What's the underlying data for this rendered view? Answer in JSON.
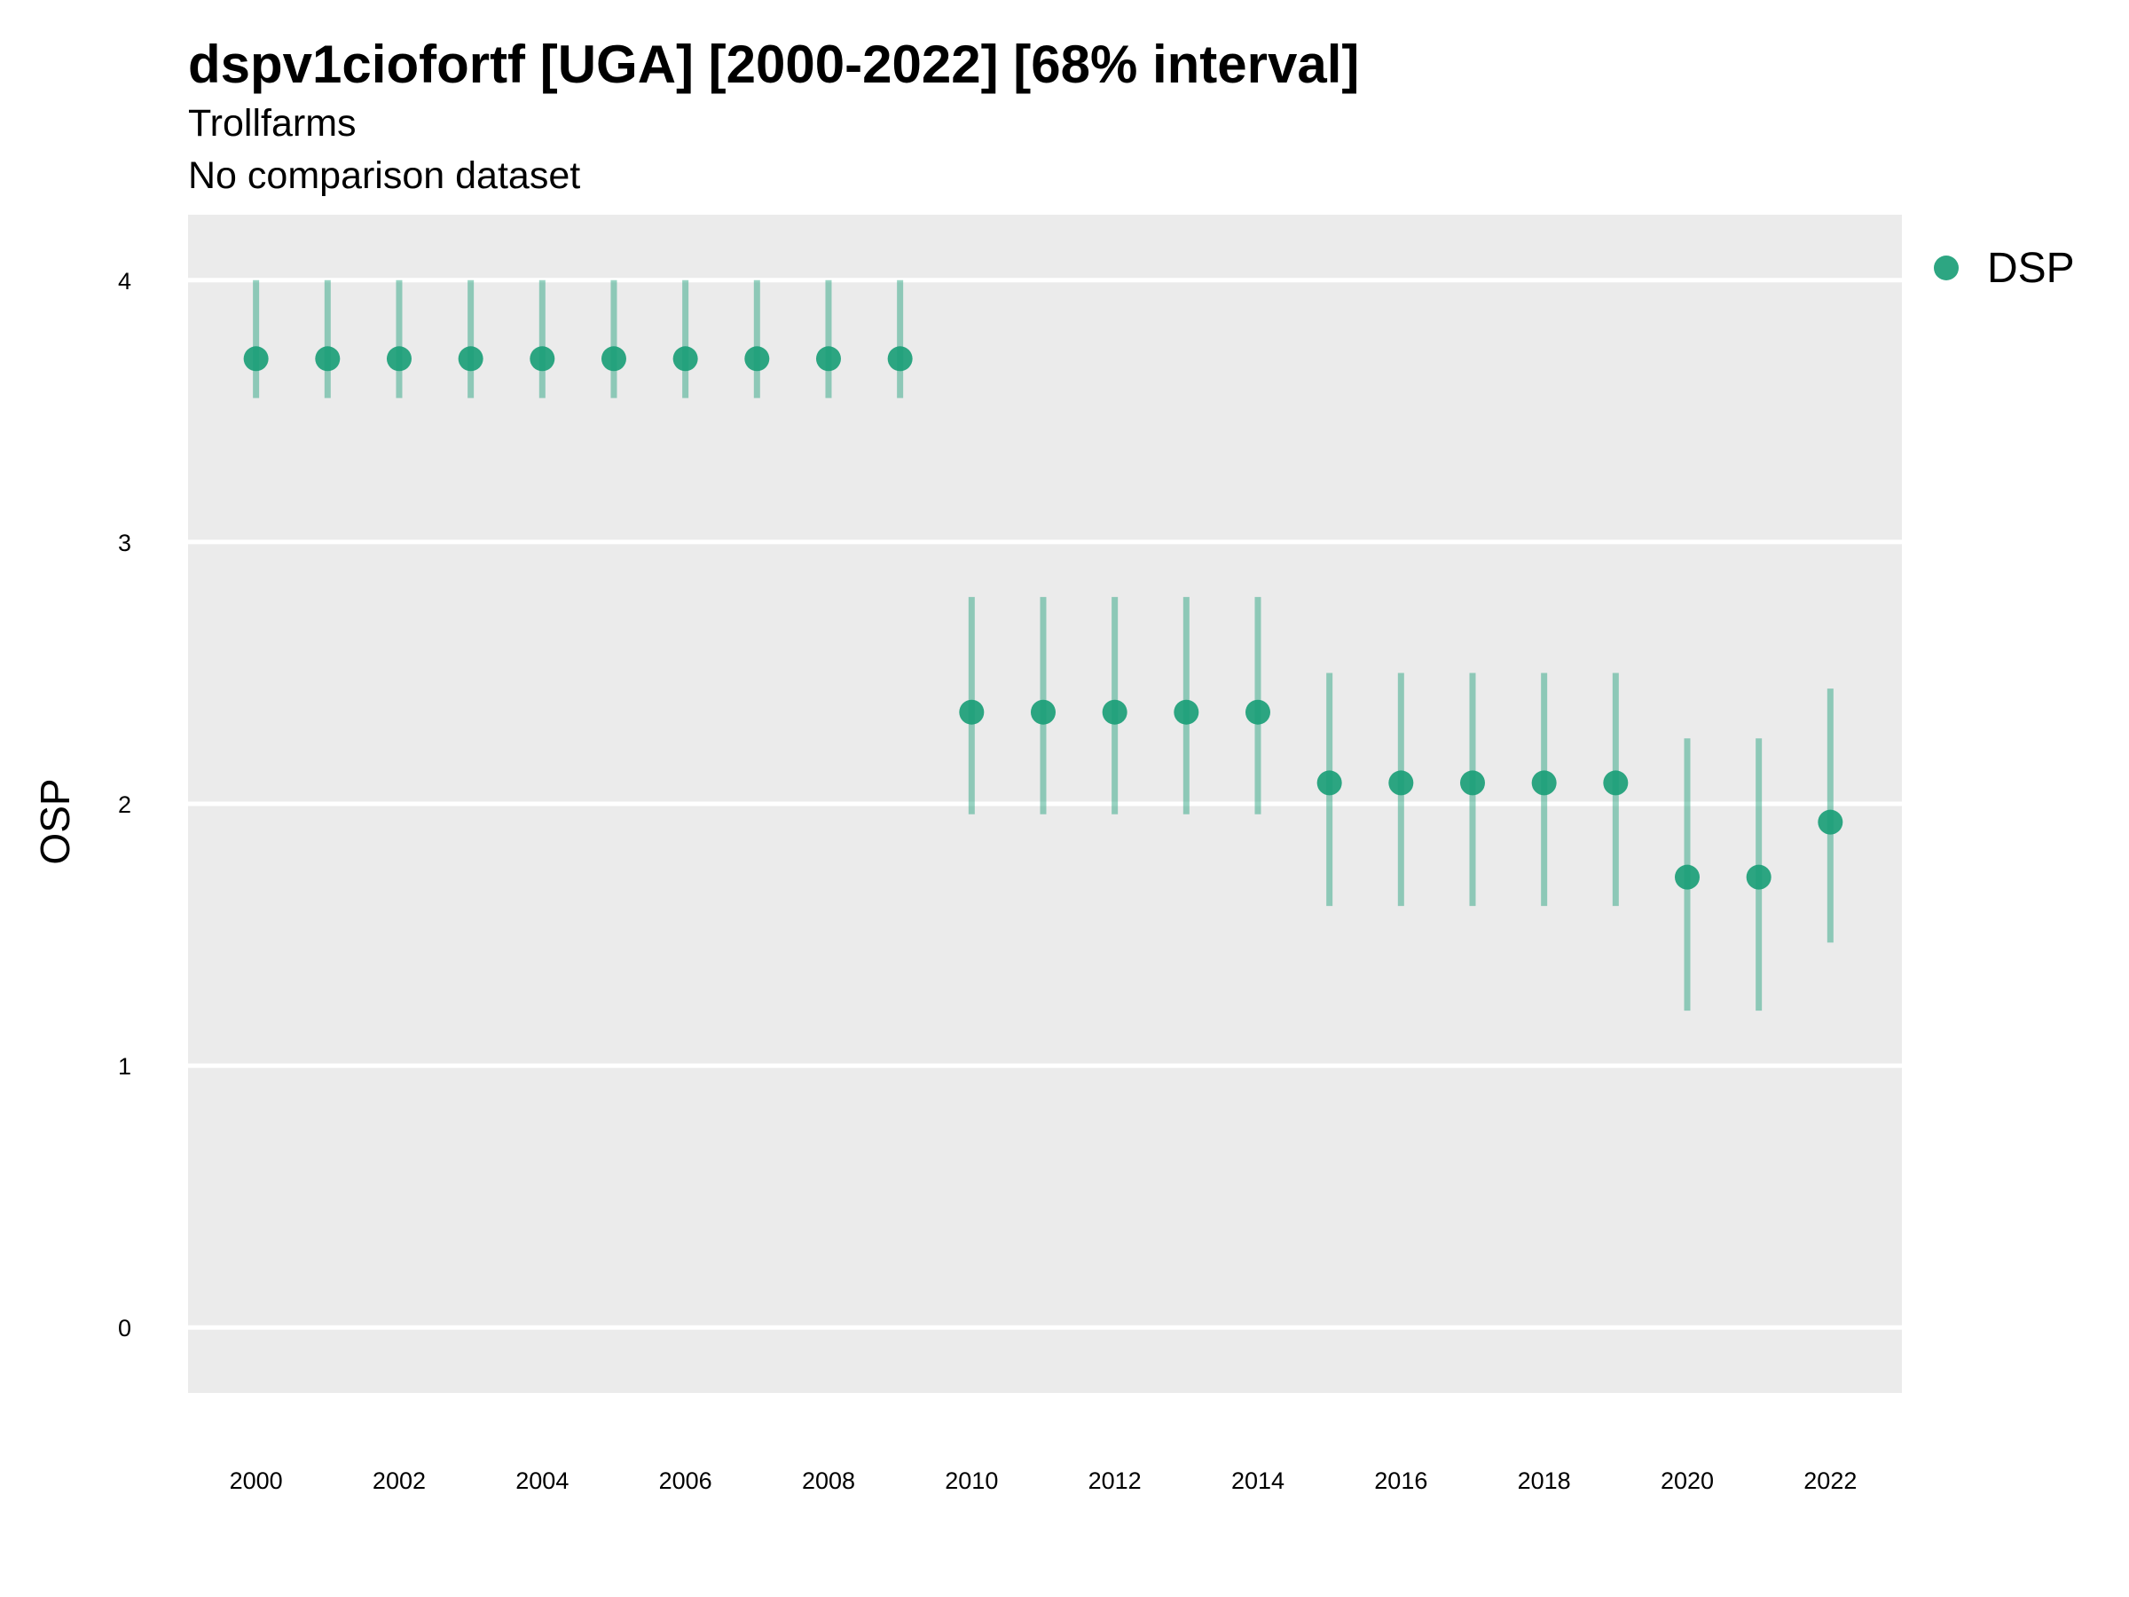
{
  "chart_data": {
    "type": "scatter",
    "title": "dspv1ciofortf [UGA] [2000-2022] [68% interval]",
    "subtitle": "Trollfarms",
    "caption": "No comparison dataset",
    "xlabel": "",
    "ylabel": "OSP",
    "xlim": [
      1999.05,
      2023.0
    ],
    "ylim": [
      -0.25,
      4.25
    ],
    "x_ticks": [
      2000,
      2002,
      2004,
      2006,
      2008,
      2010,
      2012,
      2014,
      2016,
      2018,
      2020,
      2022
    ],
    "y_ticks": [
      0,
      1,
      2,
      3,
      4
    ],
    "grid": true,
    "legend_position": "right",
    "series": [
      {
        "name": "DSP",
        "color": "#1b9e77",
        "x": [
          2000,
          2001,
          2002,
          2003,
          2004,
          2005,
          2006,
          2007,
          2008,
          2009,
          2010,
          2011,
          2012,
          2013,
          2014,
          2015,
          2016,
          2017,
          2018,
          2019,
          2020,
          2021,
          2022
        ],
        "y": [
          3.7,
          3.7,
          3.7,
          3.7,
          3.7,
          3.7,
          3.7,
          3.7,
          3.7,
          3.7,
          2.35,
          2.35,
          2.35,
          2.35,
          2.35,
          2.08,
          2.08,
          2.08,
          2.08,
          2.08,
          1.72,
          1.72,
          1.93
        ],
        "lower": [
          3.55,
          3.55,
          3.55,
          3.55,
          3.55,
          3.55,
          3.55,
          3.55,
          3.55,
          3.55,
          1.96,
          1.96,
          1.96,
          1.96,
          1.96,
          1.61,
          1.61,
          1.61,
          1.61,
          1.61,
          1.21,
          1.21,
          1.47
        ],
        "upper": [
          4.0,
          4.0,
          4.0,
          4.0,
          4.0,
          4.0,
          4.0,
          4.0,
          4.0,
          4.0,
          2.79,
          2.79,
          2.79,
          2.79,
          2.79,
          2.5,
          2.5,
          2.5,
          2.5,
          2.5,
          2.25,
          2.25,
          2.44
        ]
      }
    ]
  }
}
